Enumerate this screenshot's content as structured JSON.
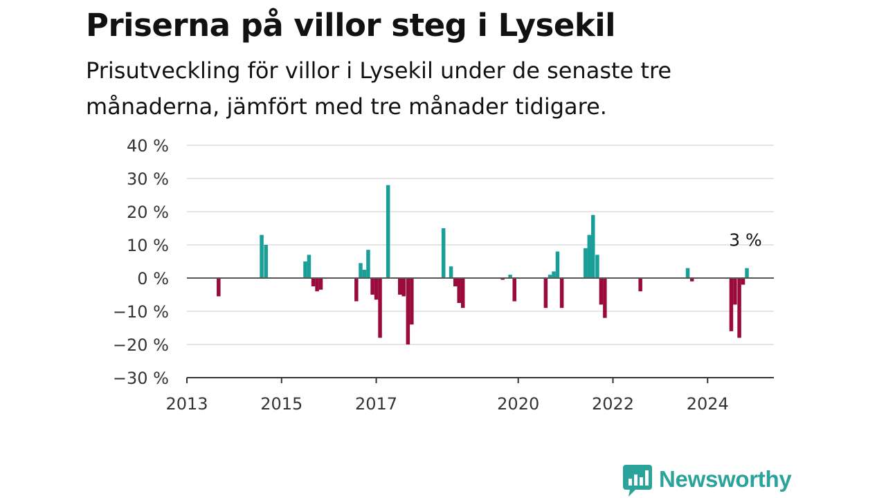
{
  "title": "Priserna på villor steg i Lysekil",
  "subtitle": "Prisutveckling för villor i Lysekil under de senaste tre månaderna, jämfört med tre månader tidigare.",
  "brand": {
    "name": "Newsworthy",
    "color": "#2aa39a"
  },
  "colors": {
    "positive": "#1a9f98",
    "negative": "#9b0a3c",
    "grid": "#dddddd",
    "zero_line": "#555555"
  },
  "chart_data": {
    "type": "bar",
    "ylim": [
      -30,
      40
    ],
    "y_ticks": [
      {
        "value": 40,
        "label": "40 %"
      },
      {
        "value": 30,
        "label": "30 %"
      },
      {
        "value": 20,
        "label": "20 %"
      },
      {
        "value": 10,
        "label": "10 %"
      },
      {
        "value": 0,
        "label": "0 %"
      },
      {
        "value": -10,
        "label": "−10 %"
      },
      {
        "value": -20,
        "label": "−20 %"
      },
      {
        "value": -30,
        "label": "−30 %"
      }
    ],
    "x_ticks": [
      {
        "value": 2013.0,
        "label": "2013"
      },
      {
        "value": 2015.0,
        "label": "2015"
      },
      {
        "value": 2017.0,
        "label": "2017"
      },
      {
        "value": 2020.0,
        "label": "2020"
      },
      {
        "value": 2022.0,
        "label": "2022"
      },
      {
        "value": 2024.0,
        "label": "2024"
      }
    ],
    "xlim": [
      2013.0,
      2025.4
    ],
    "grid": true,
    "end_label": "3 %",
    "points": [
      {
        "x": 2013.67,
        "y": -5.5
      },
      {
        "x": 2014.58,
        "y": 13
      },
      {
        "x": 2014.67,
        "y": 10
      },
      {
        "x": 2015.5,
        "y": 5
      },
      {
        "x": 2015.58,
        "y": 7
      },
      {
        "x": 2015.67,
        "y": -2.5
      },
      {
        "x": 2015.75,
        "y": -4
      },
      {
        "x": 2015.83,
        "y": -3.5
      },
      {
        "x": 2016.58,
        "y": -7
      },
      {
        "x": 2016.67,
        "y": 4.5
      },
      {
        "x": 2016.75,
        "y": 2.5
      },
      {
        "x": 2016.83,
        "y": 8.5
      },
      {
        "x": 2016.92,
        "y": -5
      },
      {
        "x": 2017.0,
        "y": -6.5
      },
      {
        "x": 2017.08,
        "y": -18
      },
      {
        "x": 2017.25,
        "y": 28
      },
      {
        "x": 2017.5,
        "y": -5
      },
      {
        "x": 2017.58,
        "y": -5.5
      },
      {
        "x": 2017.67,
        "y": -20
      },
      {
        "x": 2017.75,
        "y": -14
      },
      {
        "x": 2018.42,
        "y": 15
      },
      {
        "x": 2018.58,
        "y": 3.5
      },
      {
        "x": 2018.67,
        "y": -2.5
      },
      {
        "x": 2018.75,
        "y": -7.5
      },
      {
        "x": 2018.83,
        "y": -9
      },
      {
        "x": 2019.67,
        "y": -0.5
      },
      {
        "x": 2019.83,
        "y": 1
      },
      {
        "x": 2019.92,
        "y": -7
      },
      {
        "x": 2020.58,
        "y": -9
      },
      {
        "x": 2020.67,
        "y": 1
      },
      {
        "x": 2020.75,
        "y": 2
      },
      {
        "x": 2020.83,
        "y": 8
      },
      {
        "x": 2020.92,
        "y": -9
      },
      {
        "x": 2021.42,
        "y": 9
      },
      {
        "x": 2021.5,
        "y": 13
      },
      {
        "x": 2021.58,
        "y": 19
      },
      {
        "x": 2021.67,
        "y": 7
      },
      {
        "x": 2021.75,
        "y": -8
      },
      {
        "x": 2021.83,
        "y": -12
      },
      {
        "x": 2022.58,
        "y": -4
      },
      {
        "x": 2023.58,
        "y": 3
      },
      {
        "x": 2023.67,
        "y": -1
      },
      {
        "x": 2024.5,
        "y": -16
      },
      {
        "x": 2024.58,
        "y": -8
      },
      {
        "x": 2024.67,
        "y": -18
      },
      {
        "x": 2024.75,
        "y": -2
      },
      {
        "x": 2024.83,
        "y": 3
      }
    ]
  }
}
